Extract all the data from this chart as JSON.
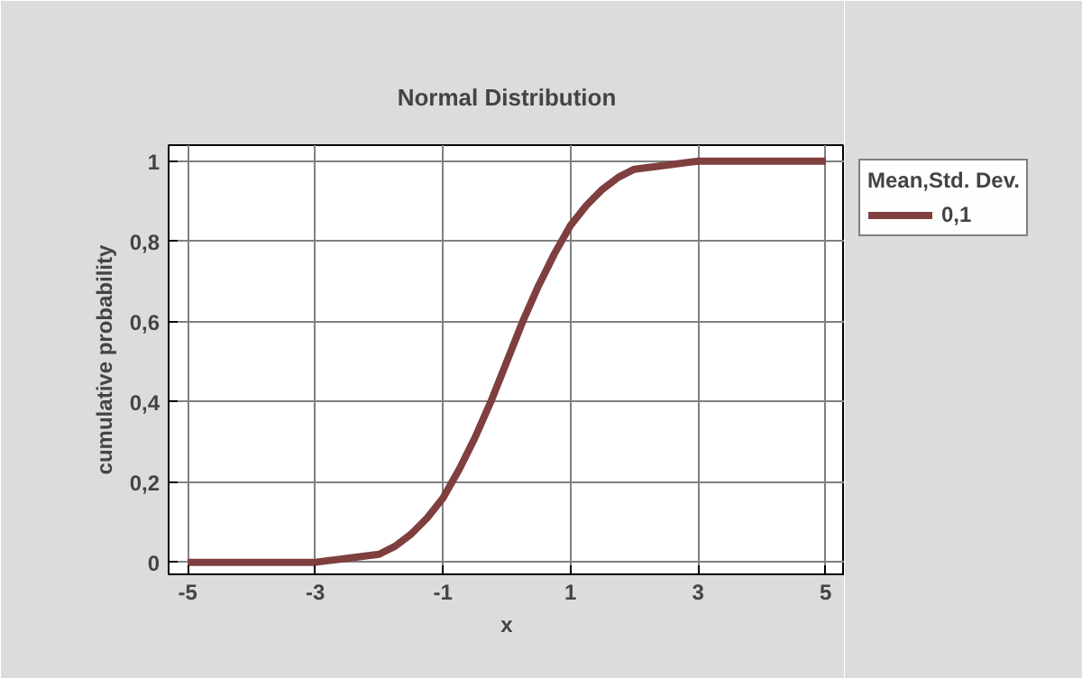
{
  "chart_data": {
    "type": "line",
    "title": "Normal Distribution",
    "xlabel": "x",
    "ylabel": "cumulative probability",
    "legend_title": "Mean,Std. Dev.",
    "x": [
      -5,
      -4,
      -3,
      -2.5,
      -2,
      -1.75,
      -1.5,
      -1.25,
      -1,
      -0.75,
      -0.5,
      -0.25,
      0,
      0.25,
      0.5,
      0.75,
      1,
      1.25,
      1.5,
      1.75,
      2,
      2.5,
      3,
      4,
      5
    ],
    "series": [
      {
        "name": "0,1",
        "color": "#7f3f3f",
        "values": [
          0,
          0,
          0,
          0.01,
          0.02,
          0.04,
          0.07,
          0.11,
          0.16,
          0.23,
          0.31,
          0.4,
          0.5,
          0.6,
          0.69,
          0.77,
          0.84,
          0.89,
          0.93,
          0.96,
          0.98,
          0.99,
          1,
          1,
          1
        ]
      }
    ],
    "xlim": [
      -5.3,
      5.3
    ],
    "ylim": [
      -0.03,
      1.04
    ],
    "xticks": [
      -5,
      -3,
      -1,
      1,
      3,
      5
    ],
    "yticks": [
      0,
      {
        "value": 0.2,
        "label": "0,2"
      },
      {
        "value": 0.4,
        "label": "0,4"
      },
      {
        "value": 0.6,
        "label": "0,6"
      },
      {
        "value": 0.8,
        "label": "0,8"
      },
      1
    ],
    "grid": true,
    "legend": "right",
    "marker": "none",
    "line_style": "solid"
  }
}
